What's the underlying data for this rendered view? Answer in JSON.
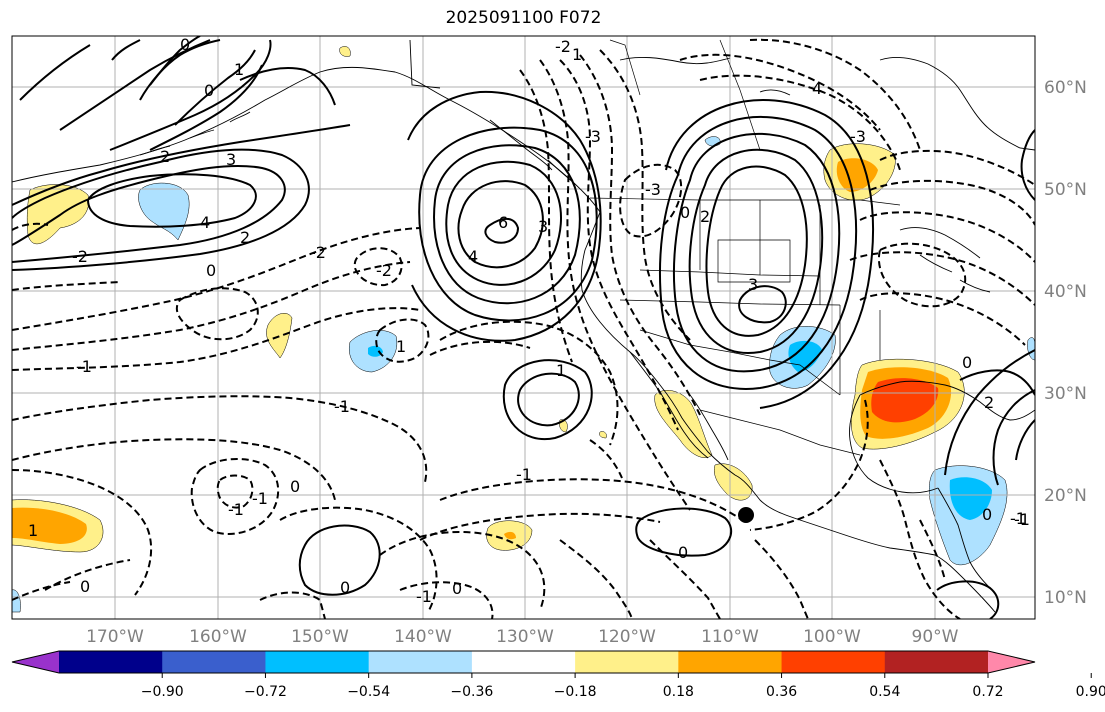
{
  "title": "2025091100 F072",
  "map": {
    "lat_ticks": [
      "60°N",
      "50°N",
      "40°N",
      "30°N",
      "20°N",
      "10°N"
    ],
    "lon_ticks": [
      "170°W",
      "160°W",
      "150°W",
      "140°W",
      "130°W",
      "120°W",
      "110°W",
      "100°W",
      "90°W"
    ],
    "contour_labels": [
      "0",
      "1",
      "2",
      "3",
      "4",
      "2",
      "0",
      "-2",
      "-2",
      "6",
      "4",
      "3",
      "-3",
      "-2",
      "0",
      "2",
      "3",
      "-3",
      "1",
      "0",
      "-2",
      "-1",
      "-1",
      "1",
      "-1",
      "0",
      "1",
      "0",
      "-1",
      "0",
      "1",
      "-1",
      "0",
      "0",
      "-1",
      "-1",
      "4",
      "2",
      "0",
      "-1",
      "0",
      "-3"
    ],
    "colors": {
      "yellow": "#fff08a",
      "orange": "#ffa500",
      "red_orange": "#ff4000",
      "light_blue": "#aee1ff",
      "blue": "#00bfff",
      "marker": "#000000"
    }
  },
  "colorbar": {
    "colors": [
      "#9932cc",
      "#00008b",
      "#3a5fcd",
      "#00bfff",
      "#aee1ff",
      "#ffffff",
      "#fff08a",
      "#ffa500",
      "#ff4000",
      "#b22222",
      "#ff88aa"
    ],
    "tick_labels": [
      "−0.90",
      "−0.72",
      "−0.54",
      "−0.36",
      "−0.18",
      "0.18",
      "0.36",
      "0.54",
      "0.72",
      "0.90"
    ]
  }
}
